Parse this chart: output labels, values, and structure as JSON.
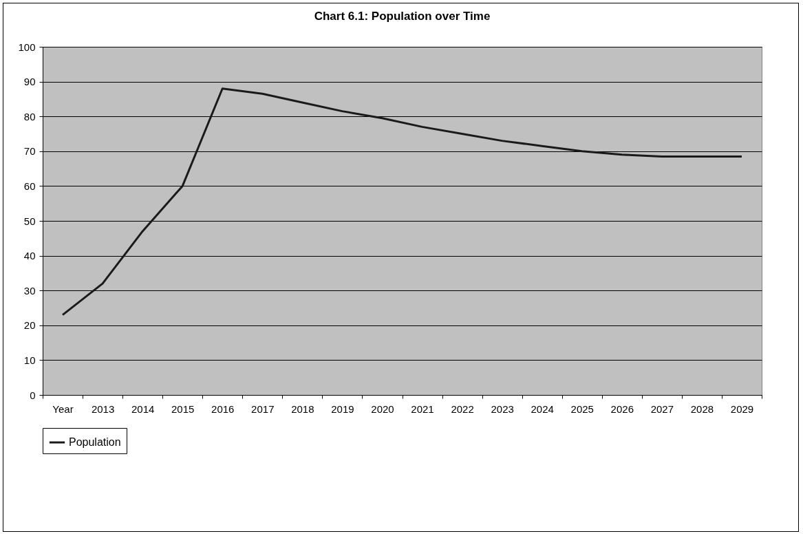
{
  "chart_data": {
    "type": "line",
    "title": "Chart 6.1:  Population over Time",
    "categories": [
      "Year",
      "2013",
      "2014",
      "2015",
      "2016",
      "2017",
      "2018",
      "2019",
      "2020",
      "2021",
      "2022",
      "2023",
      "2024",
      "2025",
      "2026",
      "2027",
      "2028",
      "2029"
    ],
    "series": [
      {
        "name": "Population",
        "color": "#1a1a1a",
        "values": [
          23,
          32,
          47,
          60,
          88,
          86.5,
          84,
          81.5,
          79.5,
          77,
          75,
          73,
          71.5,
          70,
          69,
          68.5,
          68.5,
          68.5
        ]
      }
    ],
    "ylim": [
      0,
      100
    ],
    "yticks": [
      0,
      10,
      20,
      30,
      40,
      50,
      60,
      70,
      80,
      90,
      100
    ],
    "grid": "y",
    "legend": "bottom"
  }
}
